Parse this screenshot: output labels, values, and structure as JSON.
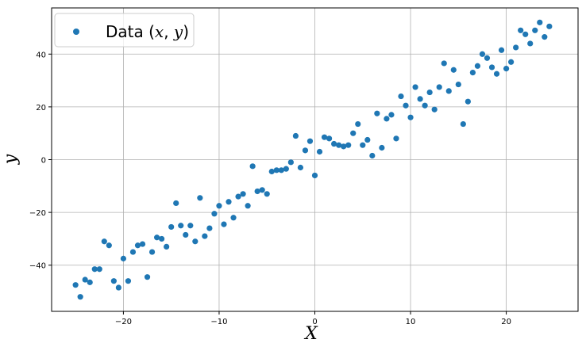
{
  "chart_data": {
    "type": "scatter",
    "xlabel": "X",
    "ylabel": "y",
    "xlim": [
      -27.5,
      27.5
    ],
    "ylim": [
      -57.5,
      57.5
    ],
    "xticks": [
      -20,
      -10,
      0,
      10,
      20
    ],
    "yticks": [
      -40,
      -20,
      0,
      20,
      40
    ],
    "xtick_labels": [
      "−20",
      "−10",
      "0",
      "10",
      "20"
    ],
    "ytick_labels": [
      "−40",
      "−20",
      "0",
      "20",
      "40"
    ],
    "grid": true,
    "legend_position": "top-left",
    "color": "#1f77b4",
    "series": [
      {
        "name": "Data (x, y)",
        "points": [
          [
            -25.0,
            -47.5
          ],
          [
            -24.5,
            -52.0
          ],
          [
            -24.0,
            -45.5
          ],
          [
            -23.5,
            -46.5
          ],
          [
            -23.0,
            -41.5
          ],
          [
            -22.5,
            -41.5
          ],
          [
            -22.0,
            -31.0
          ],
          [
            -21.5,
            -32.5
          ],
          [
            -21.0,
            -46.0
          ],
          [
            -20.5,
            -48.5
          ],
          [
            -20.0,
            -37.5
          ],
          [
            -19.5,
            -46.0
          ],
          [
            -19.0,
            -35.0
          ],
          [
            -18.5,
            -32.5
          ],
          [
            -18.0,
            -32.0
          ],
          [
            -17.5,
            -44.5
          ],
          [
            -17.0,
            -35.0
          ],
          [
            -16.5,
            -29.5
          ],
          [
            -16.0,
            -30.0
          ],
          [
            -15.5,
            -33.0
          ],
          [
            -15.0,
            -25.5
          ],
          [
            -14.5,
            -16.5
          ],
          [
            -14.0,
            -25.0
          ],
          [
            -13.5,
            -28.5
          ],
          [
            -13.0,
            -25.0
          ],
          [
            -12.5,
            -31.0
          ],
          [
            -12.0,
            -14.5
          ],
          [
            -11.5,
            -29.0
          ],
          [
            -11.0,
            -26.0
          ],
          [
            -10.5,
            -20.5
          ],
          [
            -10.0,
            -17.5
          ],
          [
            -9.5,
            -24.5
          ],
          [
            -9.0,
            -16.0
          ],
          [
            -8.5,
            -22.0
          ],
          [
            -8.0,
            -14.0
          ],
          [
            -7.5,
            -13.0
          ],
          [
            -7.0,
            -17.5
          ],
          [
            -6.5,
            -2.5
          ],
          [
            -6.0,
            -12.0
          ],
          [
            -5.5,
            -11.5
          ],
          [
            -5.0,
            -13.0
          ],
          [
            -4.5,
            -4.5
          ],
          [
            -4.0,
            -4.0
          ],
          [
            -3.5,
            -4.0
          ],
          [
            -3.0,
            -3.5
          ],
          [
            -2.5,
            -1.0
          ],
          [
            -2.0,
            9.0
          ],
          [
            -1.5,
            -3.0
          ],
          [
            -1.0,
            3.5
          ],
          [
            -0.5,
            7.0
          ],
          [
            0.0,
            -6.0
          ],
          [
            0.5,
            3.0
          ],
          [
            1.0,
            8.5
          ],
          [
            1.5,
            8.0
          ],
          [
            2.0,
            6.0
          ],
          [
            2.5,
            5.5
          ],
          [
            3.0,
            5.0
          ],
          [
            3.5,
            5.5
          ],
          [
            4.0,
            10.0
          ],
          [
            4.5,
            13.5
          ],
          [
            5.0,
            5.5
          ],
          [
            5.5,
            7.5
          ],
          [
            6.0,
            1.5
          ],
          [
            6.5,
            17.5
          ],
          [
            7.0,
            4.5
          ],
          [
            7.5,
            15.5
          ],
          [
            8.0,
            17.0
          ],
          [
            8.5,
            8.0
          ],
          [
            9.0,
            24.0
          ],
          [
            9.5,
            20.5
          ],
          [
            10.0,
            16.0
          ],
          [
            10.5,
            27.5
          ],
          [
            11.0,
            23.0
          ],
          [
            11.5,
            20.5
          ],
          [
            12.0,
            25.5
          ],
          [
            12.5,
            19.0
          ],
          [
            13.0,
            27.5
          ],
          [
            13.5,
            36.5
          ],
          [
            14.0,
            26.0
          ],
          [
            14.5,
            34.0
          ],
          [
            15.0,
            28.5
          ],
          [
            15.5,
            13.5
          ],
          [
            16.0,
            22.0
          ],
          [
            16.5,
            33.0
          ],
          [
            17.0,
            35.5
          ],
          [
            17.5,
            40.0
          ],
          [
            18.0,
            38.5
          ],
          [
            18.5,
            35.0
          ],
          [
            19.0,
            32.5
          ],
          [
            19.5,
            41.5
          ],
          [
            20.0,
            34.5
          ],
          [
            20.5,
            37.0
          ],
          [
            21.0,
            42.5
          ],
          [
            21.5,
            49.0
          ],
          [
            22.0,
            47.5
          ],
          [
            22.5,
            44.0
          ],
          [
            23.0,
            49.0
          ],
          [
            23.5,
            52.0
          ],
          [
            24.0,
            46.5
          ],
          [
            24.5,
            50.5
          ]
        ]
      }
    ]
  }
}
